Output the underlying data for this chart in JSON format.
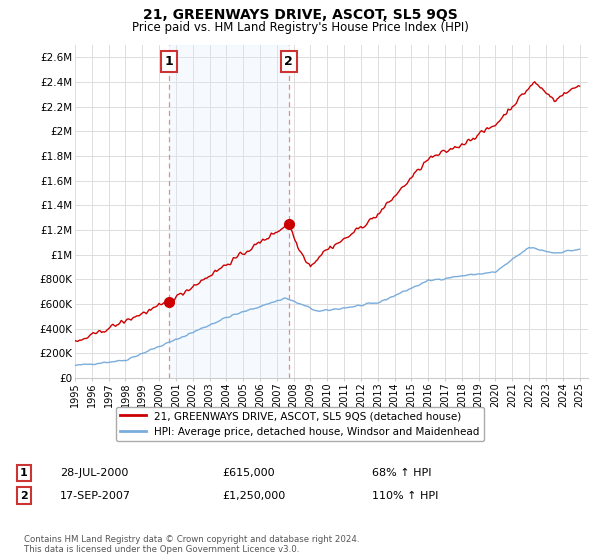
{
  "title": "21, GREENWAYS DRIVE, ASCOT, SL5 9QS",
  "subtitle": "Price paid vs. HM Land Registry's House Price Index (HPI)",
  "legend_label_red": "21, GREENWAYS DRIVE, ASCOT, SL5 9QS (detached house)",
  "legend_label_blue": "HPI: Average price, detached house, Windsor and Maidenhead",
  "annotation1_label": "1",
  "annotation1_date": "28-JUL-2000",
  "annotation1_price": "£615,000",
  "annotation1_hpi": "68% ↑ HPI",
  "annotation1_year": 2000.57,
  "annotation1_value": 615000,
  "annotation2_label": "2",
  "annotation2_date": "17-SEP-2007",
  "annotation2_price": "£1,250,000",
  "annotation2_hpi": "110% ↑ HPI",
  "annotation2_year": 2007.71,
  "annotation2_value": 1250000,
  "footer": "Contains HM Land Registry data © Crown copyright and database right 2024.\nThis data is licensed under the Open Government Licence v3.0.",
  "ylim": [
    0,
    2700000
  ],
  "yticks": [
    0,
    200000,
    400000,
    600000,
    800000,
    1000000,
    1200000,
    1400000,
    1600000,
    1800000,
    2000000,
    2200000,
    2400000,
    2600000
  ],
  "ytick_labels": [
    "£0",
    "£200K",
    "£400K",
    "£600K",
    "£800K",
    "£1M",
    "£1.2M",
    "£1.4M",
    "£1.6M",
    "£1.8M",
    "£2M",
    "£2.2M",
    "£2.4M",
    "£2.6M"
  ],
  "red_color": "#cc0000",
  "blue_color": "#7aaddc",
  "vline_color": "#ee8888",
  "shade_color": "#ddeeff",
  "background_color": "#ffffff",
  "grid_color": "#dddddd"
}
